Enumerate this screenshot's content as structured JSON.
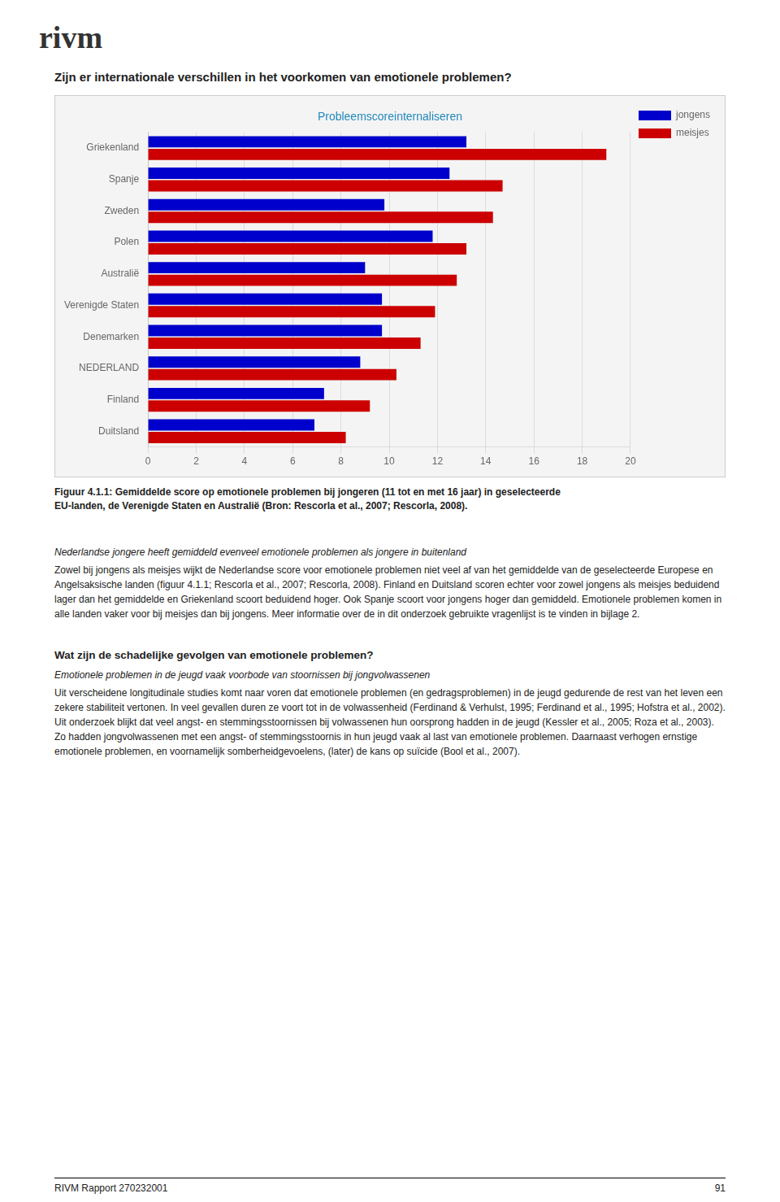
{
  "logo": "rivm",
  "heading": "Zijn er internationale verschillen in het voorkomen van emotionele problemen?",
  "chart_data": {
    "type": "bar",
    "orientation": "horizontal",
    "title": "Probleemscoreinternaliseren",
    "categories": [
      "Griekenland",
      "Spanje",
      "Zweden",
      "Polen",
      "Australië",
      "Verenigde Staten",
      "Denemarken",
      "NEDERLAND",
      "Finland",
      "Duitsland"
    ],
    "series": [
      {
        "name": "jongens",
        "color": "#0000CC",
        "values": [
          13.2,
          12.5,
          9.8,
          11.8,
          9.0,
          9.7,
          9.7,
          8.8,
          7.3,
          6.9
        ]
      },
      {
        "name": "meisjes",
        "color": "#CC0000",
        "values": [
          19.0,
          14.7,
          14.3,
          13.2,
          12.8,
          11.9,
          11.3,
          10.3,
          9.2,
          8.2
        ]
      }
    ],
    "xlim": [
      0,
      20
    ],
    "xticks": [
      0,
      2,
      4,
      6,
      8,
      10,
      12,
      14,
      16,
      18,
      20
    ],
    "grid": true,
    "legend": "right"
  },
  "caption": [
    "Figuur 4.1.1: Gemiddelde score op emotionele problemen bij jongeren (11 tot en met 16 jaar) in geselecteerde",
    "EU-landen, de Verenigde Staten en Australië (Bron: Rescorla et al., 2007; Rescorla, 2008)."
  ],
  "sections": [
    {
      "italic": "Nederlandse jongere heeft gemiddeld evenveel emotionele problemen als jongere in buitenland",
      "text": "Zowel bij jongens als meisjes wijkt de Nederlandse score voor emotionele problemen niet veel af van het gemiddelde van de geselecteerde Europese en Angelsaksische landen (figuur 4.1.1; Rescorla et al., 2007; Rescorla, 2008). Finland en Duitsland scoren echter voor zowel jongens als meisjes beduidend lager dan het gemiddelde en Griekenland scoort beduidend hoger. Ook Spanje scoort voor jongens hoger dan gemiddeld. Emotionele problemen komen in alle landen vaker voor bij meisjes dan bij jongens. Meer informatie over de in dit onderzoek gebruikte vragenlijst is te vinden in bijlage 2."
    },
    {
      "heading": "Wat zijn de schadelijke gevolgen van emotionele problemen?",
      "italic": "Emotionele problemen in de jeugd vaak voorbode van stoornissen bij jongvolwassenen",
      "text": "Uit verscheidene longitudinale studies komt naar voren dat emotionele problemen (en gedragsproblemen) in de jeugd gedurende de rest van het leven een zekere stabiliteit vertonen. In veel gevallen duren ze voort tot in de volwassenheid (Ferdinand & Verhulst, 1995; Ferdinand et al., 1995; Hofstra et al., 2002). Uit onderzoek blijkt dat veel angst- en stemmingsstoornissen bij volwassenen hun oorsprong hadden in de jeugd (Kessler et al., 2005; Roza et al., 2003). Zo hadden jongvolwassenen met een angst- of stemmingsstoornis in hun jeugd vaak al last van emotionele problemen. Daarnaast verhogen ernstige emotionele problemen, en voornamelijk somberheidgevoelens, (later) de kans op suïcide (Bool et al., 2007)."
    }
  ],
  "footer": {
    "left": "RIVM Rapport 270232001",
    "right": "91"
  }
}
